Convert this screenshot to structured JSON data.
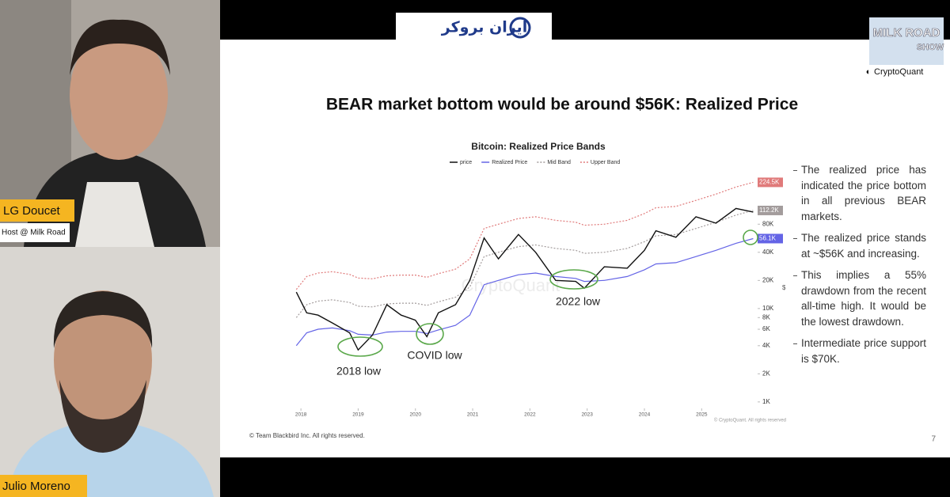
{
  "header": {
    "logo_text": "ایران بروکر"
  },
  "show_logo": {
    "line1": "MILK ROAD",
    "line2": "SHOW"
  },
  "brand": "CryptoQuant",
  "participants": [
    {
      "name": "LG Doucet",
      "role": "Host @ Milk Road"
    },
    {
      "name": "Julio Moreno"
    }
  ],
  "slide": {
    "title": "BEAR market bottom would be around $56K: Realized Price",
    "bullets": [
      "The realized price has indicated the price bottom in all previous BEAR markets.",
      "The realized price stands at ~$56K and increasing.",
      "This implies a 55% drawdown from the recent all-time high. It would be the lowest drawdown.",
      "Intermediate price support is $70K."
    ],
    "footer": "© Team Blackbird Inc. All rights reserved.",
    "page_number": "7",
    "chart_data": {
      "type": "line",
      "title": "Bitcoin: Realized Price Bands",
      "y_label": "$",
      "log_scale": true,
      "watermark": "CryptoQuant",
      "source": "© CryptoQuant. All rights reserved",
      "annotations": [
        "2018 low",
        "COVID low",
        "2022 low"
      ],
      "x": [
        2017.92,
        2018.1,
        2018.3,
        2018.55,
        2018.85,
        2019.0,
        2019.25,
        2019.5,
        2019.75,
        2020.0,
        2020.2,
        2020.4,
        2020.7,
        2020.95,
        2021.2,
        2021.45,
        2021.8,
        2022.1,
        2022.45,
        2022.8,
        2022.95,
        2023.3,
        2023.7,
        2024.0,
        2024.2,
        2024.55,
        2024.9,
        2025.25,
        2025.6,
        2025.9
      ],
      "xlim": [
        2017.86,
        2025.95
      ],
      "xticks": [
        2018,
        2019,
        2020,
        2021,
        2022,
        2023,
        2024,
        2025
      ],
      "ylim": [
        870,
        275000
      ],
      "yticks": [
        {
          "value": 1000,
          "label": "1K"
        },
        {
          "value": 2000,
          "label": "2K"
        },
        {
          "value": 4000,
          "label": "4K"
        },
        {
          "value": 6000,
          "label": "6K"
        },
        {
          "value": 8000,
          "label": "8K"
        },
        {
          "value": 10000,
          "label": "10K"
        },
        {
          "value": 20000,
          "label": "20K"
        },
        {
          "value": 40000,
          "label": "40K"
        },
        {
          "value": 80000,
          "label": "80K"
        }
      ],
      "series": [
        {
          "name": "price",
          "color": "#111111",
          "dash": false,
          "values": [
            15000,
            9000,
            8500,
            7000,
            5500,
            3600,
            5200,
            11000,
            8500,
            7500,
            5000,
            9000,
            11000,
            20000,
            57000,
            34000,
            62000,
            40000,
            20000,
            19500,
            16500,
            28000,
            27000,
            42000,
            68000,
            58000,
            96000,
            82000,
            118000,
            108000
          ]
        },
        {
          "name": "Realized Price",
          "color": "#6464e6",
          "dash": false,
          "end_label": "56.1K",
          "values": [
            4000,
            5500,
            6000,
            6200,
            5800,
            5300,
            5200,
            5600,
            5700,
            5700,
            5400,
            5900,
            6600,
            8500,
            18000,
            20000,
            23000,
            24000,
            22000,
            21000,
            19500,
            20000,
            22000,
            26000,
            30000,
            31000,
            36000,
            42000,
            50000,
            56100
          ]
        },
        {
          "name": "Mid Band",
          "color": "#a39c9c",
          "dash": true,
          "end_label": "112.2K",
          "values": [
            8000,
            11000,
            12000,
            12400,
            11600,
            10600,
            10400,
            11200,
            11400,
            11400,
            10800,
            11800,
            13200,
            17000,
            36000,
            40000,
            46000,
            48000,
            44000,
            42000,
            39000,
            40000,
            44000,
            52000,
            60000,
            62000,
            72000,
            84000,
            100000,
            112200
          ]
        },
        {
          "name": "Upper Band",
          "color": "#e07a7a",
          "dash": true,
          "end_label": "224.5K",
          "values": [
            16000,
            22000,
            24000,
            24800,
            23200,
            21200,
            20800,
            22400,
            22800,
            22800,
            21600,
            23600,
            26400,
            34000,
            72000,
            80000,
            92000,
            96000,
            88000,
            84000,
            78000,
            80000,
            88000,
            104000,
            120000,
            124000,
            144000,
            168000,
            200000,
            224500
          ]
        }
      ]
    }
  }
}
